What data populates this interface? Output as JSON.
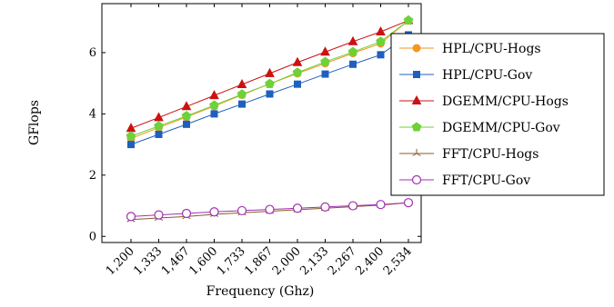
{
  "chart_data": {
    "type": "line",
    "xlabel": "Frequency (Ghz)",
    "ylabel": "GFlops",
    "categories": [
      "1,200",
      "1,333",
      "1,467",
      "1,600",
      "1,733",
      "1,867",
      "2,000",
      "2,133",
      "2,267",
      "2,400",
      "2,534"
    ],
    "ylim": [
      -0.2,
      7.6
    ],
    "yticks": [
      0,
      2,
      4,
      6
    ],
    "grid": false,
    "legend_position": "right",
    "series": [
      {
        "name": "HPL/CPU-Hogs",
        "color": "#f5961e",
        "marker": "circle",
        "values": [
          3.2,
          3.55,
          3.9,
          4.25,
          4.62,
          4.98,
          5.32,
          5.65,
          5.98,
          6.3,
          7.05
        ]
      },
      {
        "name": "HPL/CPU-Gov",
        "color": "#1f5fbf",
        "marker": "square",
        "values": [
          3.0,
          3.33,
          3.66,
          4.0,
          4.32,
          4.65,
          4.97,
          5.3,
          5.62,
          5.93,
          6.58
        ]
      },
      {
        "name": "DGEMM/CPU-Hogs",
        "color": "#cc1111",
        "marker": "triangle",
        "values": [
          3.53,
          3.88,
          4.24,
          4.6,
          4.96,
          5.32,
          5.68,
          6.02,
          6.36,
          6.68,
          7.05
        ]
      },
      {
        "name": "DGEMM/CPU-Gov",
        "color": "#6fd13a",
        "marker": "pentagon",
        "values": [
          3.27,
          3.6,
          3.93,
          4.28,
          4.64,
          4.98,
          5.35,
          5.7,
          6.02,
          6.36,
          7.05
        ]
      },
      {
        "name": "FFT/CPU-Hogs",
        "color": "#8b5a2b",
        "marker": "star",
        "values": [
          0.55,
          0.6,
          0.65,
          0.72,
          0.77,
          0.82,
          0.87,
          0.92,
          0.97,
          1.02,
          1.1
        ]
      },
      {
        "name": "FFT/CPU-Gov",
        "color": "#a030b0",
        "marker": "circle-open",
        "values": [
          0.65,
          0.7,
          0.75,
          0.8,
          0.84,
          0.88,
          0.92,
          0.96,
          1.0,
          1.04,
          1.1
        ]
      }
    ]
  }
}
